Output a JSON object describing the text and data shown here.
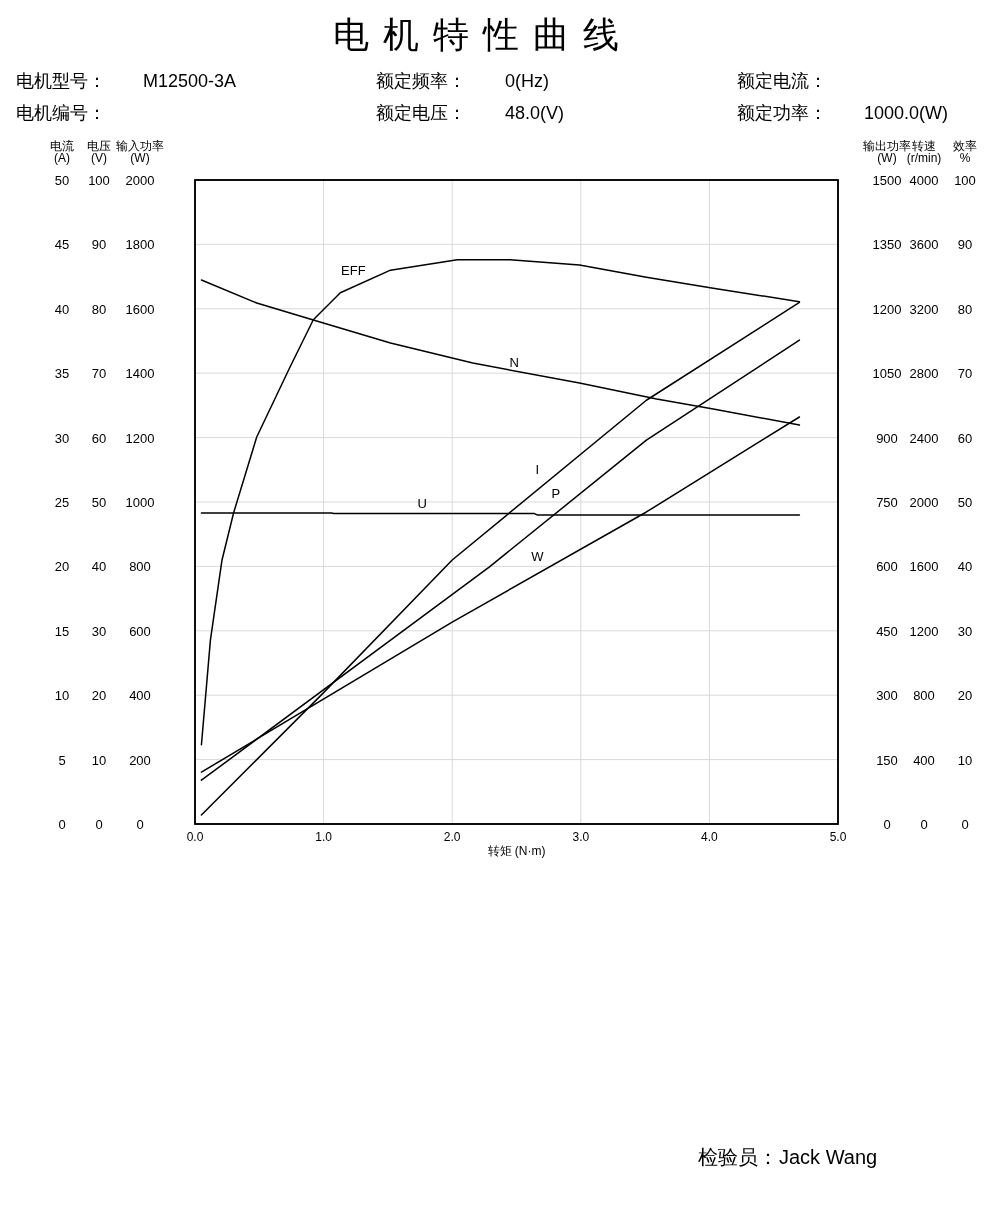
{
  "chart_data": [
    {
      "type": "line",
      "title": "电机特性曲线",
      "annotations": [
        "电机型号：",
        "M12500-3A",
        "额定频率：",
        "0(Hz)",
        "额定电流：",
        "电机编号：",
        "额定电压：",
        "48.0(V)",
        "额定功率：",
        "1000.0(W)",
        "检验员：",
        "Jack Wang"
      ],
      "xlabel": "转矩 (N·m)",
      "ylabel": "电流\n(A)",
      "y2label": "电压\n(V)",
      "y3label": "输入功率\n(W)",
      "xlim": [
        0,
        5
      ],
      "xticks": [
        {
          "value": 0,
          "label": "0.0"
        },
        {
          "value": 1,
          "label": "1.0"
        },
        {
          "value": 2,
          "label": "2.0"
        },
        {
          "value": 3,
          "label": "3.0"
        },
        {
          "value": 4,
          "label": "4.0"
        },
        {
          "value": 5,
          "label": "5.0"
        }
      ],
      "ylim": [
        0,
        50
      ],
      "yticks": [
        0,
        5,
        10,
        15,
        20,
        25,
        30,
        35,
        40,
        45,
        50
      ],
      "y2lim": [
        0,
        100
      ],
      "y2ticks": [
        0,
        10,
        20,
        30,
        40,
        50,
        60,
        70,
        80,
        90,
        100
      ],
      "y3lim": [
        0,
        2000
      ],
      "y3ticks": [
        0,
        200,
        400,
        600,
        800,
        1000,
        1200,
        1400,
        1600,
        1800,
        2000
      ],
      "grid": true,
      "series": [
        {
          "name": "U",
          "axis": "y2",
          "color": "#000000",
          "x": [
            0.05,
            1.06,
            1.08,
            2.64,
            2.66,
            4.7
          ],
          "values": [
            48.3,
            48.3,
            48.2,
            48.2,
            48.0,
            48.0
          ]
        },
        {
          "name": "W",
          "axis": "y3",
          "color": "#000000",
          "x": [
            0.05,
            2.0,
            3.51,
            4.7
          ],
          "values": [
            161,
            627,
            969,
            1264
          ]
        },
        {
          "name": "I",
          "color": "#000000",
          "x": [
            0.05,
            1.0,
            2.0,
            3.51,
            4.7
          ],
          "values": [
            0.7,
            10.2,
            20.5,
            32.9,
            40.5
          ]
        }
      ]
    },
    {
      "type": "line",
      "ylabel": "输出功率\n(W)",
      "y2label": "转速\n(r/min)",
      "y3label": "效率\n%",
      "xlim": [
        0,
        5
      ],
      "ylim": [
        0,
        1500
      ],
      "yticks": [
        0,
        150,
        300,
        450,
        600,
        750,
        900,
        1050,
        1200,
        1350,
        1500
      ],
      "y2lim": [
        0,
        4000
      ],
      "y2ticks": [
        0,
        400,
        800,
        1200,
        1600,
        2000,
        2400,
        2800,
        3200,
        3600,
        4000
      ],
      "y3lim": [
        0,
        100
      ],
      "y3ticks": [
        0,
        10,
        20,
        30,
        40,
        50,
        60,
        70,
        80,
        90,
        100
      ],
      "series": [
        {
          "name": "EFF",
          "axis": "y3",
          "color": "#000000",
          "x": [
            0.05,
            0.12,
            0.21,
            0.3,
            0.48,
            0.74,
            0.92,
            1.13,
            1.52,
            2.04,
            2.45,
            2.99,
            3.51,
            4.03,
            4.7
          ],
          "values": [
            12.3,
            28.6,
            41.0,
            48.3,
            60.1,
            71.0,
            78.3,
            82.5,
            86.0,
            87.6,
            87.6,
            86.8,
            84.9,
            83.2,
            81.1
          ]
        },
        {
          "name": "N",
          "axis": "y2",
          "color": "#000000",
          "x": [
            0.05,
            0.48,
            0.92,
            1.52,
            2.16,
            2.99,
            3.59,
            4.03,
            4.7
          ],
          "values": [
            3379,
            3236,
            3130,
            2988,
            2863,
            2739,
            2640,
            2578,
            2478
          ]
        },
        {
          "name": "P",
          "color": "#000000",
          "x": [
            0.05,
            2.29,
            3.51,
            4.7
          ],
          "values": [
            102,
            599,
            894,
            1127
          ]
        }
      ]
    }
  ]
}
